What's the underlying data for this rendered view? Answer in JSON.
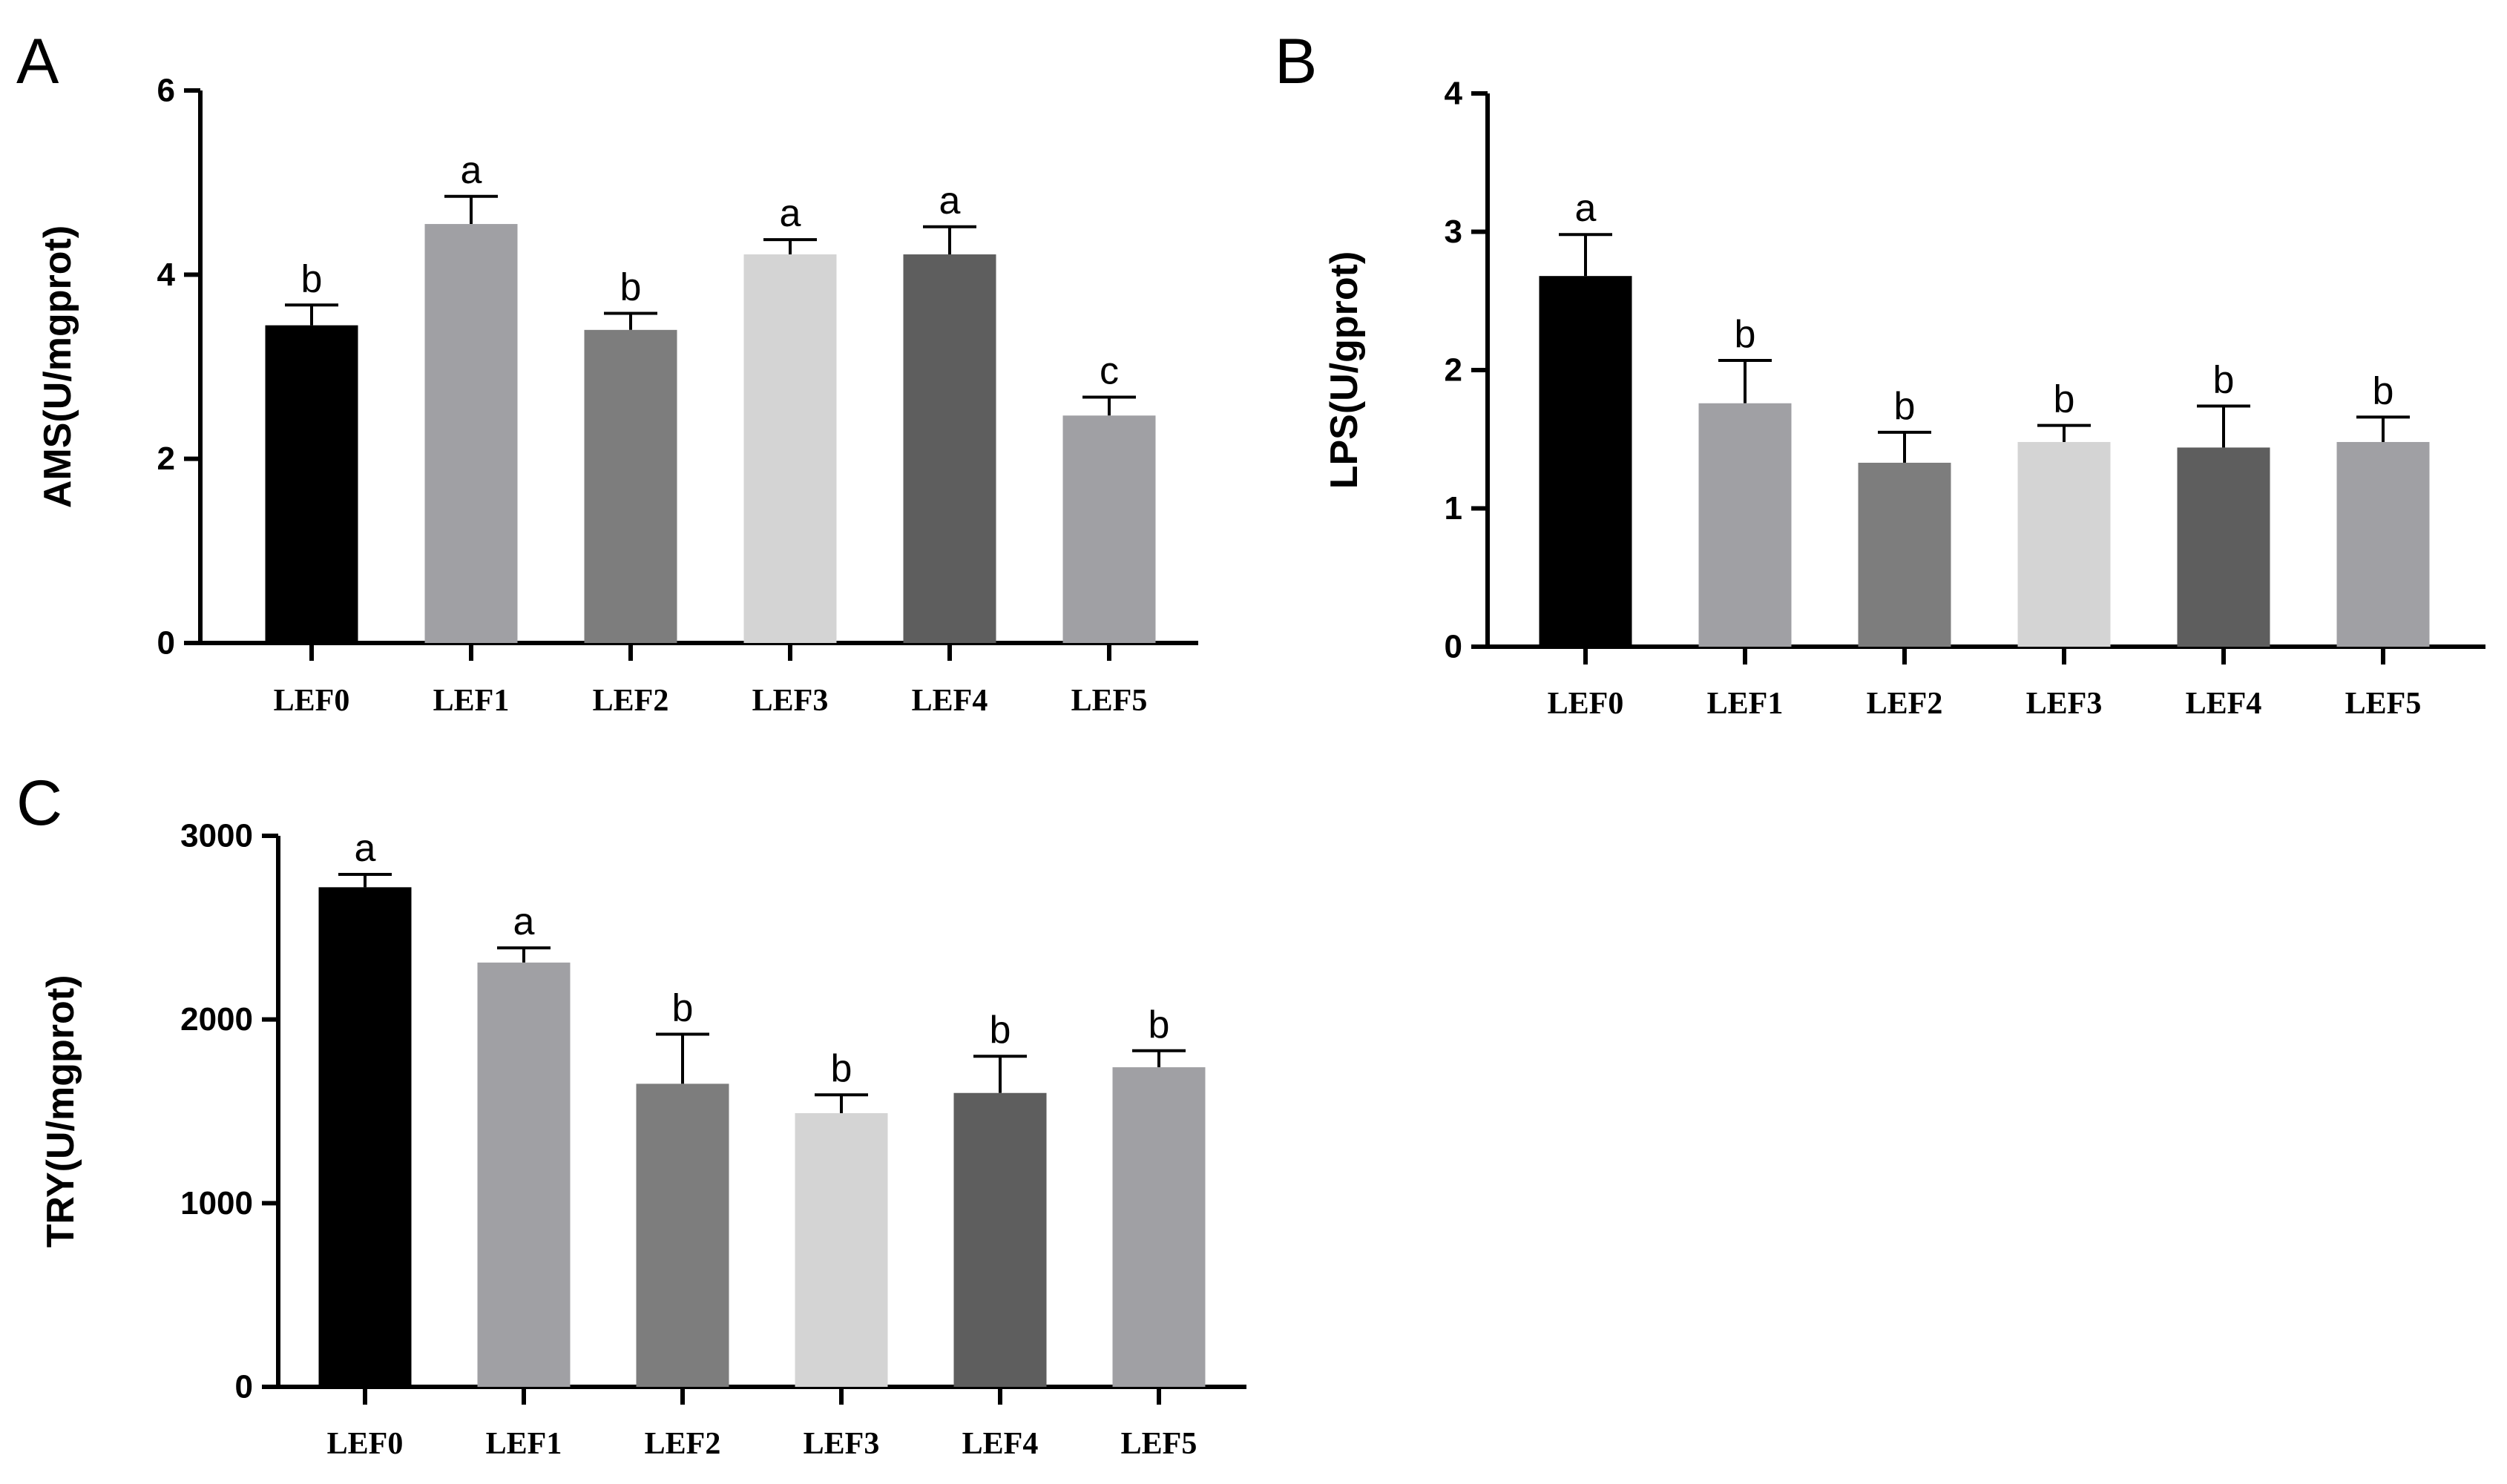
{
  "chart_data": [
    {
      "type": "bar",
      "panel": "A",
      "ylabel": "AMS(U/mgprot)",
      "xlabel": "",
      "ylim": [
        0,
        6
      ],
      "yticks": [
        0,
        2,
        4,
        6
      ],
      "categories": [
        "LEF0",
        "LEF1",
        "LEF2",
        "LEF3",
        "LEF4",
        "LEF5"
      ],
      "values": [
        3.45,
        4.55,
        3.4,
        4.22,
        4.22,
        2.47
      ],
      "errors": [
        0.22,
        0.3,
        0.18,
        0.16,
        0.3,
        0.2
      ],
      "labels": [
        "b",
        "a",
        "b",
        "a",
        "a",
        "c"
      ],
      "colors": [
        "#000000",
        "#a0a0a4",
        "#7d7d7d",
        "#d4d4d4",
        "#5e5e5e",
        "#a0a0a4"
      ]
    },
    {
      "type": "bar",
      "panel": "B",
      "ylabel": "LPS(U/gprot)",
      "xlabel": "",
      "ylim": [
        0,
        4
      ],
      "yticks": [
        0,
        1,
        2,
        3,
        4
      ],
      "categories": [
        "LEF0",
        "LEF1",
        "LEF2",
        "LEF3",
        "LEF4",
        "LEF5"
      ],
      "values": [
        2.68,
        1.76,
        1.33,
        1.48,
        1.44,
        1.48
      ],
      "errors": [
        0.3,
        0.31,
        0.22,
        0.12,
        0.3,
        0.18
      ],
      "labels": [
        "a",
        "b",
        "b",
        "b",
        "b",
        "b"
      ],
      "colors": [
        "#000000",
        "#a0a0a4",
        "#7d7d7d",
        "#d4d4d4",
        "#5e5e5e",
        "#a0a0a4"
      ]
    },
    {
      "type": "bar",
      "panel": "C",
      "ylabel": "TRY(U/mgprot)",
      "xlabel": "",
      "ylim": [
        0,
        3000
      ],
      "yticks": [
        0,
        1000,
        2000,
        3000
      ],
      "categories": [
        "LEF0",
        "LEF1",
        "LEF2",
        "LEF3",
        "LEF4",
        "LEF5"
      ],
      "values": [
        2720,
        2310,
        1650,
        1490,
        1600,
        1740
      ],
      "errors": [
        70,
        80,
        270,
        100,
        200,
        90
      ],
      "labels": [
        "a",
        "a",
        "b",
        "b",
        "b",
        "b"
      ],
      "colors": [
        "#000000",
        "#a0a0a4",
        "#7d7d7d",
        "#d4d4d4",
        "#5e5e5e",
        "#a0a0a4"
      ]
    }
  ]
}
